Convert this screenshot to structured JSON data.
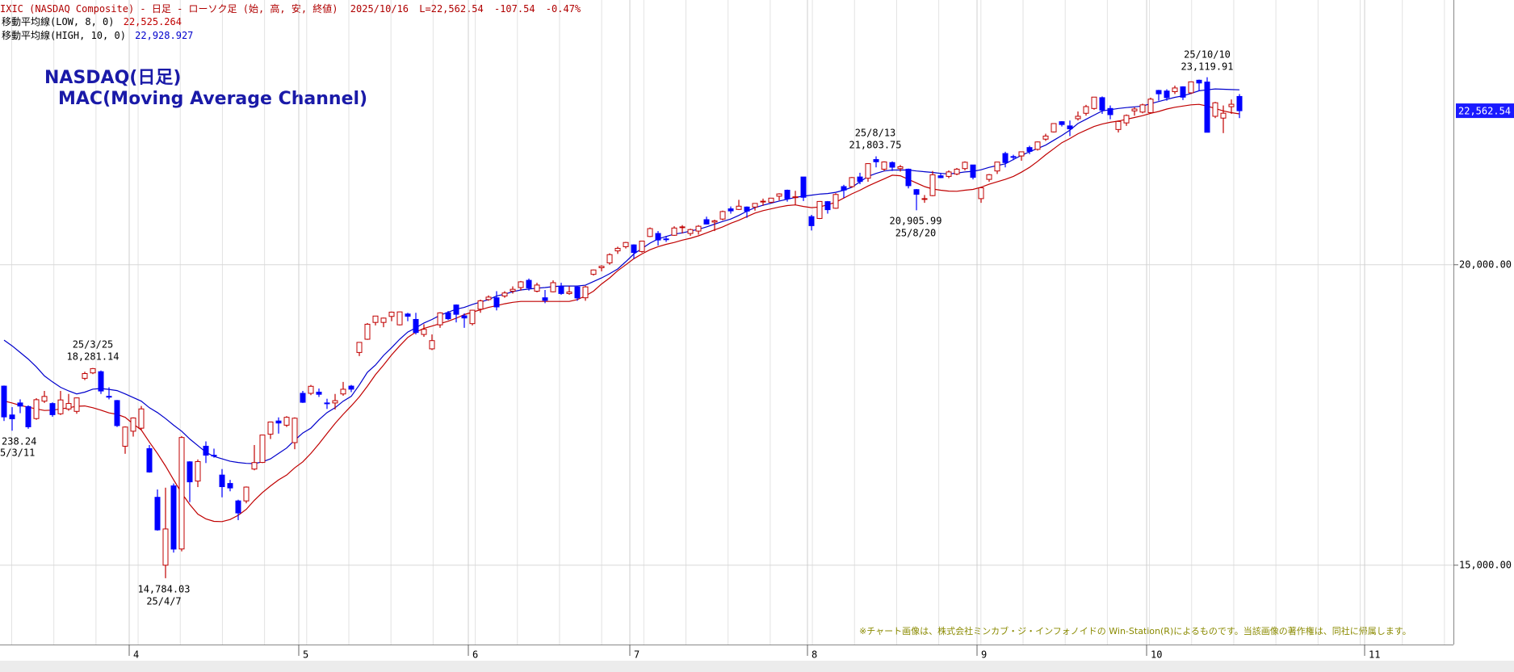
{
  "chart_data": {
    "type": "candlestick",
    "header": {
      "symbol": "IXIC (NASDAQ Composite) - 日足 - ローソク足 (始, 高, 安, 終値)",
      "date": "2025/10/16",
      "last": "L=22,562.54",
      "change": "-107.54",
      "change_pct": "-0.47%"
    },
    "title": "NASDAQ(日足)",
    "subtitle": "MAC(Moving Average Channel)",
    "credit": "※チャート画像は、株式会社ミンカブ・ジ・インフォノイドの Win-Station(R)によるものです。当該画像の著作権は、同社に帰属します。",
    "price_tag": "22,562.54",
    "annotations": [
      {
        "lines": [
          "25/3/25",
          "18,281.14"
        ]
      },
      {
        "lines": [
          "238.24",
          "5/3/11"
        ]
      },
      {
        "lines": [
          "14,784.03",
          "25/4/7"
        ]
      },
      {
        "lines": [
          "25/8/13",
          "21,803.75"
        ]
      },
      {
        "lines": [
          "20,905.99",
          "25/8/20"
        ]
      },
      {
        "lines": [
          "25/10/10",
          "23,119.91"
        ]
      }
    ],
    "categories": [
      null,
      null,
      null,
      null,
      null,
      null,
      null,
      null,
      null,
      null,
      null,
      null,
      null,
      null,
      null,
      null,
      null,
      null,
      null,
      null,
      null,
      null,
      null,
      null,
      null,
      null,
      null,
      null,
      null,
      null,
      null,
      null,
      null,
      null,
      null,
      null,
      null,
      null,
      null,
      null,
      null,
      null,
      null,
      null,
      null,
      null,
      null,
      null,
      null,
      null,
      null,
      null,
      null,
      null,
      null,
      null,
      null,
      null,
      null,
      null,
      null,
      null,
      null,
      null,
      null,
      null,
      null,
      null,
      null,
      null,
      null,
      null,
      null,
      null,
      null,
      null,
      null,
      null,
      null,
      null,
      null,
      null,
      null,
      null,
      null,
      null,
      null,
      null,
      null,
      null,
      null,
      null,
      null,
      null,
      null,
      null,
      null,
      null,
      null,
      null,
      null,
      null,
      null,
      null,
      null,
      null,
      null,
      null,
      null,
      null,
      null,
      null,
      null,
      null,
      null,
      null,
      null,
      null,
      null,
      null,
      null,
      null,
      null,
      null,
      null,
      null,
      null,
      null,
      null,
      null,
      null,
      null,
      null,
      null,
      null,
      null,
      null,
      null,
      null,
      null,
      null,
      null,
      null,
      null,
      null,
      null,
      null,
      null,
      null,
      null,
      null,
      null,
      null,
      null
    ],
    "up_color": "#c00000",
    "down_color": "#0000ff",
    "open": [
      17980,
      17500,
      17700,
      17640,
      17440,
      17730,
      17690,
      17520,
      17600,
      17560,
      18110,
      18200,
      18220,
      17810,
      17740,
      16980,
      17230,
      17280,
      16940,
      16130,
      15000,
      16320,
      15270,
      16720,
      16400,
      16980,
      16830,
      16500,
      16360,
      16070,
      16070,
      16600,
      16710,
      17180,
      17400,
      17330,
      17040,
      17860,
      17860,
      17880,
      17700,
      17700,
      17850,
      17980,
      18540,
      18760,
      19040,
      19040,
      19140,
      19000,
      19180,
      19090,
      18840,
      18600,
      19000,
      19200,
      19330,
      19150,
      19020,
      19260,
      19420,
      19450,
      19480,
      19560,
      19620,
      19740,
      19560,
      19450,
      19550,
      19640,
      19520,
      19630,
      19450,
      19840,
      19950,
      20030,
      20230,
      20300,
      20330,
      20220,
      20470,
      20520,
      20430,
      20490,
      20630,
      20520,
      20560,
      20750,
      20710,
      20760,
      20930,
      20920,
      20960,
      20960,
      21050,
      21040,
      21140,
      21240,
      21120,
      21460,
      20800,
      20770,
      21050,
      20940,
      21300,
      21300,
      21460,
      21440,
      21750,
      21590,
      21700,
      21600,
      21590,
      21250,
      21100,
      21150,
      21480,
      21470,
      21510,
      21600,
      21660,
      21100,
      21420,
      21560,
      21850,
      21800,
      21810,
      21950,
      21920,
      22090,
      22210,
      22380,
      22310,
      22430,
      22520,
      22600,
      22780,
      22600,
      22250,
      22360,
      22560,
      22540,
      22530,
      22900,
      22890,
      22880,
      22960,
      22860,
      23070,
      23040,
      22470,
      22440,
      22630,
      22800
    ],
    "high": [
      17990,
      17630,
      17760,
      17660,
      17780,
      17900,
      17710,
      17900,
      17850,
      17790,
      18220,
      18281.14,
      18240,
      17960,
      17750,
      17310,
      17460,
      17650,
      17000,
      16260,
      16290,
      16360,
      17150,
      16730,
      16760,
      17060,
      16940,
      16600,
      16420,
      16090,
      16310,
      17000,
      17170,
      17390,
      17460,
      17480,
      17460,
      17900,
      18000,
      17940,
      17770,
      17850,
      18050,
      18000,
      18710,
      19030,
      19150,
      19120,
      19220,
      19220,
      19200,
      19200,
      19010,
      18840,
      19210,
      19230,
      19340,
      19190,
      19250,
      19420,
      19490,
      19560,
      19560,
      19640,
      19730,
      19770,
      19700,
      19580,
      19740,
      19700,
      19640,
      19650,
      19650,
      19920,
      19990,
      20190,
      20300,
      20380,
      20340,
      20400,
      20620,
      20560,
      20480,
      20640,
      20660,
      20600,
      20660,
      20800,
      20750,
      20900,
      20970,
      21080,
      20970,
      21020,
      21100,
      21110,
      21190,
      21250,
      21230,
      21460,
      20830,
      21060,
      21060,
      21190,
      21330,
      21460,
      21530,
      21690,
      21803.75,
      21720,
      21720,
      21660,
      21600,
      21260,
      21160,
      21560,
      21530,
      21570,
      21610,
      21720,
      21660,
      21290,
      21510,
      21710,
      21880,
      21830,
      21880,
      21980,
      22050,
      22180,
      22350,
      22390,
      22400,
      22550,
      22660,
      22790,
      22800,
      22650,
      22400,
      22500,
      22620,
      22680,
      22780,
      22910,
      22920,
      22980,
      22970,
      23050,
      23080,
      23119.91,
      22710,
      22650,
      22750,
      22840
    ],
    "low": [
      17400,
      17238.24,
      17530,
      17270,
      17420,
      17700,
      17470,
      17500,
      17570,
      17520,
      18080,
      18180,
      17850,
      17760,
      17300,
      16854,
      17140,
      17250,
      16540,
      15575,
      14784.03,
      15210,
      15230,
      16050,
      16300,
      16700,
      16790,
      16130,
      16230,
      15750,
      16030,
      16580,
      16700,
      17100,
      17190,
      17300,
      16930,
      17700,
      17830,
      17800,
      17600,
      17590,
      17820,
      17880,
      18480,
      18750,
      18990,
      18960,
      19060,
      18990,
      19060,
      18840,
      18800,
      18580,
      18950,
      19080,
      19040,
      18950,
      18990,
      19200,
      19400,
      19240,
      19450,
      19520,
      19570,
      19570,
      19540,
      19360,
      19540,
      19500,
      19500,
      19400,
      19400,
      19820,
      19890,
      20000,
      20180,
      20270,
      20100,
      20200,
      20460,
      20320,
      20380,
      20480,
      20520,
      20480,
      20500,
      20670,
      20560,
      20740,
      20850,
      20910,
      20780,
      20900,
      20980,
      21020,
      21070,
      21050,
      20990,
      21060,
      20570,
      20760,
      20850,
      20930,
      21110,
      21280,
      21340,
      21380,
      21620,
      21560,
      21560,
      21550,
      21270,
      20905.99,
      21030,
      21140,
      21440,
      21440,
      21490,
      21570,
      21420,
      21030,
      21380,
      21510,
      21620,
      21740,
      21730,
      21840,
      21900,
      22060,
      22200,
      22300,
      22140,
      22400,
      22480,
      22580,
      22510,
      22420,
      22200,
      22310,
      22480,
      22520,
      22520,
      22730,
      22730,
      22840,
      22740,
      22840,
      22890,
      22200,
      22440,
      22190,
      22510,
      22440
    ],
    "close": [
      17468,
      17436,
      17648,
      17303,
      17754,
      17808,
      17505,
      17750,
      17691,
      17784,
      18189,
      18271,
      17899,
      17804,
      17323,
      17299,
      17450,
      17601,
      16551,
      15588,
      15603,
      15268,
      17125,
      16387,
      16724,
      16831,
      16823,
      16307,
      16286,
      15870,
      16300,
      16708,
      17166,
      17383,
      17366,
      17461,
      17446,
      17711,
      17977,
      17844,
      17690,
      17738,
      17928,
      17929,
      18708,
      19010,
      19146,
      19112,
      19211,
      19215,
      19143,
      18872,
      18925,
      18737,
      19199,
      19101,
      19175,
      19114,
      19243,
      19399,
      19461,
      19298,
      19530,
      19591,
      19715,
      19615,
      19662,
      19407,
      19701,
      19521,
      19546,
      19447,
      19631,
      19913,
      19974,
      20168,
      20273,
      20370,
      20203,
      20393,
      20601,
      20412,
      20418,
      20611,
      20630,
      20585,
      20640,
      20677,
      20730,
      20885,
      20896,
      20974,
      20892,
      21020,
      21057,
      21108,
      21178,
      21098,
      21130,
      21122,
      20650,
      21053,
      20916,
      21169,
      21242,
      21450,
      21385,
      21682,
      21713,
      21710,
      21623,
      21630,
      21315,
      21172,
      21100,
      21497,
      21449,
      21544,
      21590,
      21705,
      21455,
      21280,
      21498,
      21708,
      21700,
      21799,
      21879,
      21886,
      22043,
      22141,
      22349,
      22333,
      22261,
      22470,
      22631,
      22789,
      22573,
      22497,
      22384,
      22484,
      22591,
      22660,
      22755,
      22844,
      22780,
      22941,
      22788,
      23043,
      23024,
      22204,
      22695,
      22521,
      22670,
      22562.54
    ],
    "lines": [
      {
        "name": "移動平均線(LOW, 8, 0)",
        "legend_value": "22,525.264",
        "color": "#c00000",
        "values": [
          17733,
          17700,
          17660,
          17630,
          17600,
          17575,
          17580,
          17600,
          17620,
          17645,
          17650,
          17620,
          17580,
          17535,
          17510,
          17460,
          17350,
          17250,
          17050,
          16860,
          16650,
          16420,
          16200,
          16010,
          15850,
          15770,
          15730,
          15725,
          15760,
          15830,
          15930,
          16080,
          16210,
          16320,
          16420,
          16500,
          16620,
          16720,
          16860,
          17020,
          17190,
          17360,
          17510,
          17650,
          17800,
          17980,
          18170,
          18330,
          18500,
          18650,
          18790,
          18880,
          18940,
          18980,
          19020,
          19060,
          19110,
          19170,
          19210,
          19250,
          19290,
          19320,
          19350,
          19375,
          19389,
          19389,
          19389,
          19389,
          19389,
          19389,
          19389,
          19420,
          19480,
          19560,
          19680,
          19780,
          19900,
          20000,
          20100,
          20180,
          20250,
          20300,
          20340,
          20370,
          20410,
          20440,
          20480,
          20530,
          20580,
          20630,
          20690,
          20740,
          20800,
          20860,
          20900,
          20930,
          20960,
          20985,
          20995,
          20970,
          20950,
          20960,
          21000,
          21040,
          21110,
          21180,
          21240,
          21310,
          21370,
          21430,
          21490,
          21480,
          21420,
          21360,
          21300,
          21260,
          21240,
          21225,
          21222,
          21240,
          21254,
          21290,
          21340,
          21380,
          21420,
          21470,
          21540,
          21620,
          21720,
          21830,
          21930,
          22030,
          22100,
          22180,
          22240,
          22300,
          22340,
          22370,
          22390,
          22420,
          22450,
          22480,
          22520,
          22550,
          22590,
          22620,
          22640,
          22660,
          22669,
          22640,
          22600,
          22560,
          22530,
          22510
        ]
      },
      {
        "name": "移動平均線(HIGH, 10, 0)",
        "legend_value": "22,928.927",
        "color": "#0000cc",
        "values": [
          18745,
          18650,
          18540,
          18430,
          18300,
          18150,
          18050,
          17960,
          17900,
          17850,
          17880,
          17930,
          17940,
          17925,
          17905,
          17850,
          17790,
          17730,
          17620,
          17540,
          17440,
          17330,
          17230,
          17100,
          16990,
          16880,
          16810,
          16770,
          16730,
          16710,
          16695,
          16690,
          16720,
          16770,
          16860,
          16950,
          17080,
          17200,
          17280,
          17420,
          17540,
          17620,
          17730,
          17810,
          18000,
          18210,
          18330,
          18490,
          18620,
          18760,
          18880,
          18950,
          19030,
          19090,
          19160,
          19210,
          19260,
          19290,
          19340,
          19380,
          19420,
          19480,
          19510,
          19550,
          19580,
          19595,
          19610,
          19620,
          19635,
          19646,
          19646,
          19646,
          19660,
          19720,
          19780,
          19850,
          19930,
          20050,
          20180,
          20270,
          20360,
          20430,
          20470,
          20510,
          20530,
          20560,
          20590,
          20630,
          20675,
          20720,
          20760,
          20820,
          20890,
          20950,
          20990,
          21025,
          21060,
          21090,
          21120,
          21140,
          21158,
          21175,
          21185,
          21205,
          21240,
          21290,
          21380,
          21470,
          21520,
          21560,
          21576,
          21576,
          21576,
          21560,
          21548,
          21535,
          21520,
          21510,
          21525,
          21543,
          21555,
          21580,
          21620,
          21650,
          21680,
          21750,
          21820,
          21880,
          21935,
          21990,
          22070,
          22150,
          22240,
          22350,
          22420,
          22490,
          22560,
          22580,
          22600,
          22615,
          22627,
          22640,
          22680,
          22715,
          22750,
          22785,
          22810,
          22850,
          22895,
          22910,
          22925,
          22920,
          22915,
          22910
        ]
      }
    ],
    "xlim": [
      -0.5,
      179.5
    ],
    "xticks": [
      {
        "value": 15.5,
        "label": "4"
      },
      {
        "value": 36.5,
        "label": "5"
      },
      {
        "value": 57.5,
        "label": "6"
      },
      {
        "value": 77.5,
        "label": "7"
      },
      {
        "value": 99.5,
        "label": "8"
      },
      {
        "value": 120.5,
        "label": "9"
      },
      {
        "value": 141.5,
        "label": "10"
      },
      {
        "value": 168.5,
        "label": "11"
      }
    ],
    "ylim": [
      13680,
      24405
    ],
    "yticks": [
      {
        "value": 15000,
        "label": "15,000.00"
      },
      {
        "value": 20000,
        "label": "20,000.00"
      }
    ],
    "grid": true
  }
}
